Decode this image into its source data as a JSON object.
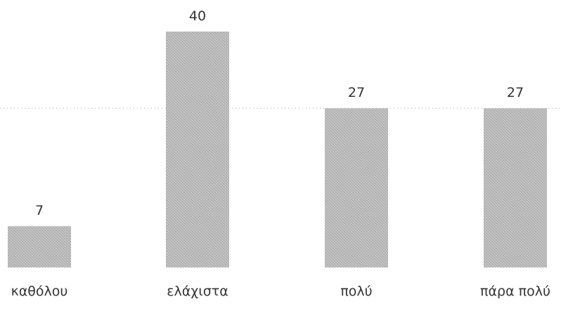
{
  "chart_data": {
    "type": "bar",
    "title": "",
    "xlabel": "",
    "ylabel": "",
    "categories": [
      "καθόλου",
      "ελάχιστα",
      "πολύ",
      "πάρα πολύ"
    ],
    "values": [
      7,
      40,
      27,
      27
    ],
    "data_labels": [
      "7",
      "40",
      "27",
      "27"
    ],
    "ylim": [
      0,
      40
    ],
    "gridlines": [
      27
    ],
    "grid": "single dotted horizontal line",
    "legend": "none",
    "colors": {
      "bar": "#b8b8b8",
      "bar_texture": "#8c8c8c",
      "grid": "#a6a6a6",
      "text": "#333333"
    }
  }
}
